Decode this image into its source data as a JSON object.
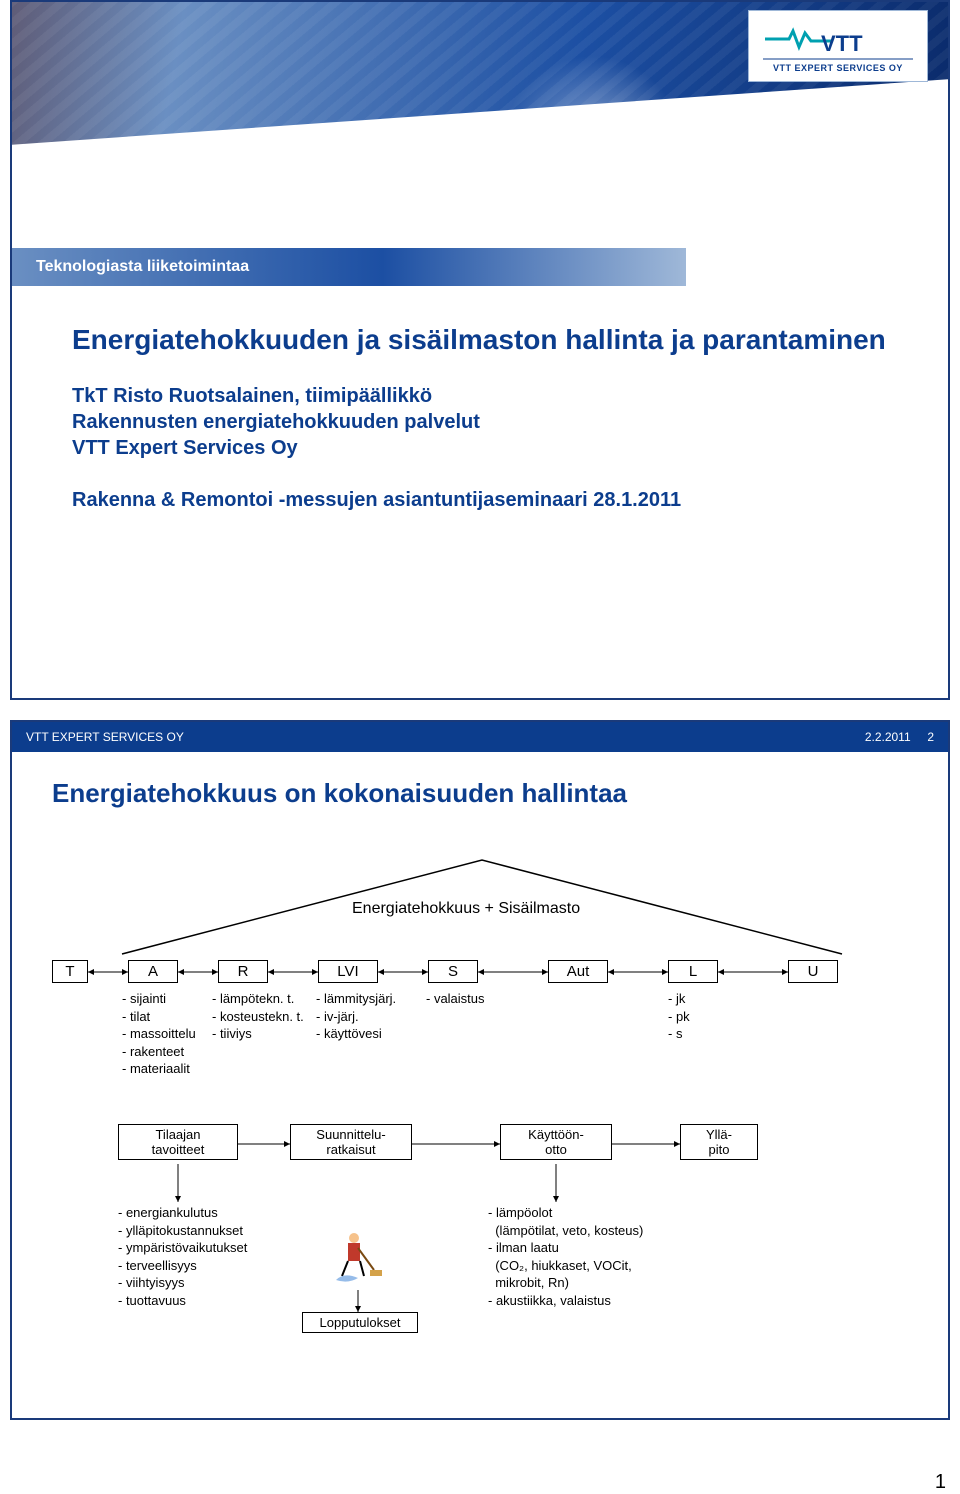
{
  "colors": {
    "brand_blue": "#0c3d8d",
    "header_grad_a": "#6a8fc2",
    "header_grad_b": "#1c4fa3",
    "frame_border": "#1a3a7a"
  },
  "slide1": {
    "logo_primary": "VTT",
    "logo_secondary": "VTT EXPERT SERVICES OY",
    "tagline": "Teknologiasta liiketoimintaa",
    "title": "Energiatehokkuuden ja sisäilmaston hallinta ja parantaminen",
    "presenter": "TkT Risto Ruotsalainen, tiimipäällikkö",
    "dept": "Rakennusten energiatehokkuuden palvelut",
    "org": "VTT Expert Services Oy",
    "event": "Rakenna & Remontoi -messujen asiantuntijaseminaari 28.1.2011"
  },
  "slide2": {
    "footer_left": "VTT EXPERT SERVICES OY",
    "footer_date": "2.2.2011",
    "footer_page": "2",
    "title": "Energiatehokkuus on kokonaisuuden hallintaa",
    "roof_label": "Energiatehokkuus + Sisäilmasto",
    "nodes": {
      "T": "T",
      "A": "A",
      "R": "R",
      "LVI": "LVI",
      "S": "S",
      "Aut": "Aut",
      "L": "L",
      "U": "U"
    },
    "col_A": [
      "- sijainti",
      "- tilat",
      "- massoittelu",
      "- rakenteet",
      "- materiaalit"
    ],
    "col_R": [
      "- lämpötekn. t.",
      "- kosteustekn. t.",
      "- tiiviys"
    ],
    "col_LVI": [
      "- lämmitysjärj.",
      "- iv-järj.",
      "- käyttövesi"
    ],
    "col_S": [
      "- valaistus"
    ],
    "col_L": [
      "- jk",
      "- pk",
      "- s"
    ],
    "mid_boxes": {
      "tilaajan": "Tilaajan\ntavoitteet",
      "suunnittelu": "Suunnittelu-\nratkaisut",
      "kaytto": "Käyttöön-\notto",
      "yllapito": "Yllä-\npito"
    },
    "left_list": [
      "- energiankulutus",
      "- ylläpitokustannukset",
      "- ympäristövaikutukset",
      "- terveellisyys",
      "- viihtyisyys",
      "- tuottavuus"
    ],
    "lopputulokset": "Lopputulokset",
    "right_list": [
      "- lämpöolot",
      "  (lämpötilat, veto, kosteus)",
      "- ilman laatu",
      "  (CO₂, hiukkaset, VOCit,",
      "  mikrobit, Rn)",
      "- akustiikka, valaistus"
    ]
  },
  "page_number": "1"
}
